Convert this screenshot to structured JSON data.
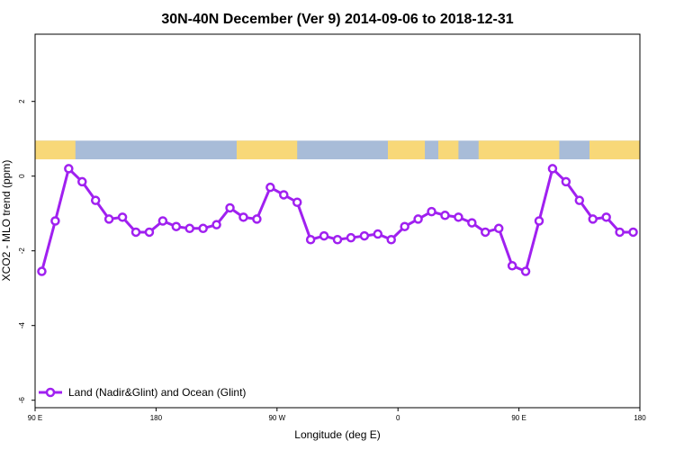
{
  "chart_data": {
    "type": "line",
    "title": "30N-40N December (Ver 9)   2014-09-06 to 2018-12-31",
    "xlabel": "Longitude (deg E)",
    "ylabel": "XCO2 - MLO trend (ppm)",
    "xlim": [
      0,
      360
    ],
    "ylim": [
      -6.2,
      3.8
    ],
    "x_ticks": [
      {
        "value": 0,
        "label": "90 E"
      },
      {
        "value": 72,
        "label": "180"
      },
      {
        "value": 144,
        "label": "90 W"
      },
      {
        "value": 216,
        "label": "0"
      },
      {
        "value": 288,
        "label": "90 E"
      },
      {
        "value": 360,
        "label": "180"
      }
    ],
    "y_ticks": [
      {
        "value": -6,
        "label": "-6"
      },
      {
        "value": -4,
        "label": "-4"
      },
      {
        "value": -2,
        "label": "-2"
      },
      {
        "value": 0,
        "label": "0"
      },
      {
        "value": 2,
        "label": "2"
      }
    ],
    "grid": false,
    "legend_position": "bottom-left",
    "series": [
      {
        "name": "Land (Nadir&Glint) and Ocean (Glint)",
        "color": "#a020f0",
        "x": [
          4,
          12,
          20,
          28,
          36,
          44,
          52,
          60,
          68,
          76,
          84,
          92,
          100,
          108,
          116,
          124,
          132,
          140,
          148,
          156,
          164,
          172,
          180,
          188,
          196,
          204,
          212,
          220,
          228,
          236,
          244,
          252,
          260,
          268,
          276,
          284,
          292,
          300,
          308,
          316,
          324,
          332,
          340,
          348,
          356
        ],
        "values": [
          -2.55,
          -1.2,
          0.2,
          -0.15,
          -0.65,
          -1.15,
          -1.1,
          -1.5,
          -1.5,
          -1.2,
          -1.35,
          -1.4,
          -1.4,
          -1.3,
          -0.85,
          -1.1,
          -1.15,
          -0.3,
          -0.5,
          -0.7,
          -1.7,
          -1.6,
          -1.7,
          -1.65,
          -1.6,
          -1.55,
          -1.7,
          -1.35,
          -1.15,
          -0.95,
          -1.05,
          -1.1,
          -1.25,
          -1.5,
          -1.4,
          -2.4,
          -2.55,
          -1.2,
          0.2,
          -0.15,
          -0.65,
          -1.15,
          -1.1,
          -1.5,
          -1.5
        ]
      }
    ],
    "map_strip": {
      "y_range": [
        0.45,
        0.95
      ],
      "ocean_color": "#a8bcd8",
      "land_color": "#f8d878",
      "land_spans": [
        [
          0,
          24
        ],
        [
          120,
          156
        ],
        [
          210,
          232
        ],
        [
          240,
          252
        ],
        [
          264,
          312
        ],
        [
          330,
          360
        ]
      ]
    }
  }
}
